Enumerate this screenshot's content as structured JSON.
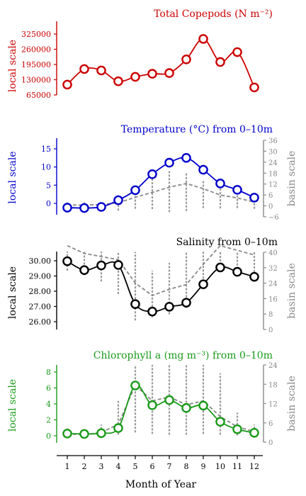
{
  "chart_data": [
    {
      "type": "line",
      "title": "Total Copepods (N m⁻²)",
      "title_color": "#cc0000",
      "ylabel": "local scale",
      "y_ticks": [
        "325000",
        "260000",
        "195000",
        "130000",
        "65000"
      ],
      "ylim": [
        42000,
        355000
      ],
      "x": [
        1,
        2,
        3,
        4,
        5,
        6,
        7,
        8,
        9,
        10,
        11,
        12
      ],
      "series": [
        {
          "values": [
            86000,
            152000,
            146000,
            100000,
            119000,
            132000,
            135000,
            193000,
            280000,
            182000,
            224000,
            74000
          ],
          "color": "#cc0000"
        }
      ]
    },
    {
      "type": "line",
      "title": "Temperature (°C) from 0–10m",
      "title_color": "#0000cc",
      "ylabel": "local scale",
      "ylabel_right": "basin scale",
      "y_ticks": [
        "15",
        "10",
        "5",
        "0"
      ],
      "y2_ticks": [
        "36",
        "30",
        "24",
        "18",
        "12",
        "6",
        "0",
        "−6"
      ],
      "ylim": [
        -3.1,
        17.5
      ],
      "ylim_right": [
        -6,
        36
      ],
      "x": [
        1,
        2,
        3,
        4,
        5,
        6,
        7,
        8,
        9,
        10,
        11,
        12
      ],
      "series": [
        {
          "values": [
            -1.2,
            -1.3,
            -1.0,
            0.8,
            3.5,
            7.8,
            10.9,
            12.2,
            9.0,
            5.3,
            3.6,
            1.5
          ],
          "color": "#0000cc"
        },
        {
          "values": [
            -0.5,
            -0.5,
            -0.4,
            0.1,
            1.6,
            2.9,
            4.3,
            5.3,
            3.9,
            2.2,
            1.4,
            0.3
          ],
          "color": "#888888",
          "dashed": true
        },
        {
          "type": "error_bar",
          "low": [
            -1.3,
            -1.3,
            -1.4,
            -2.0,
            -1.5,
            -1.6,
            -2.4,
            -2.1,
            -1.3,
            -1.4,
            -1.3,
            -1.5
          ],
          "high": [
            0.3,
            0.3,
            0.5,
            1.9,
            3.7,
            6.6,
            8.9,
            8.1,
            6.3,
            4.3,
            2.5,
            1.6
          ],
          "color": "#999999"
        }
      ]
    },
    {
      "type": "line",
      "title": "Salinity from 0–10m",
      "title_color": "#000000",
      "ylabel": "local scale",
      "ylabel_right": "basin scale",
      "y_ticks": [
        "30.00",
        "29.00",
        "28.00",
        "27.00",
        "26.00"
      ],
      "y2_ticks": [
        "40",
        "32",
        "24",
        "16",
        "8",
        "0"
      ],
      "ylim": [
        25.62,
        30.62
      ],
      "ylim_right": [
        0,
        40
      ],
      "x": [
        1,
        2,
        3,
        4,
        5,
        6,
        7,
        8,
        9,
        10,
        11,
        12
      ],
      "series": [
        {
          "values": [
            30.0,
            29.43,
            29.73,
            29.76,
            27.25,
            26.77,
            27.08,
            27.34,
            28.52,
            29.6,
            29.32,
            29.0
          ],
          "color": "#000000"
        },
        {
          "values": [
            31.0,
            30.5,
            30.3,
            30.1,
            28.6,
            27.8,
            28.2,
            28.5,
            29.8,
            31.0,
            30.7,
            30.4
          ],
          "color": "#888888",
          "dashed": true
        },
        {
          "type": "error_bar",
          "low": [
            29.4,
            29.1,
            28.7,
            27.9,
            26.2,
            26.4,
            26.6,
            27.0,
            28.2,
            29.3,
            29.5,
            29.3
          ],
          "high": [
            32.8,
            32.4,
            31.9,
            31.7,
            30.6,
            29.4,
            29.9,
            30.6,
            31.2,
            32.9,
            32.6,
            31.9
          ],
          "color": "#999999"
        }
      ]
    },
    {
      "type": "line",
      "title": "Chlorophyll a (mg m⁻³) from 0–10m",
      "title_color": "#1a9a1a",
      "ylabel": "local scale",
      "ylabel_right": "basin scale",
      "y_ticks": [
        "8",
        "6",
        "4",
        "2",
        "0"
      ],
      "y2_ticks": [
        "24",
        "18",
        "12",
        "6",
        "0"
      ],
      "ylim": [
        -0.83,
        9.06
      ],
      "ylim_right": [
        -0.3,
        24
      ],
      "x": [
        1,
        2,
        3,
        4,
        5,
        6,
        7,
        8,
        9,
        10,
        11,
        12
      ],
      "series": [
        {
          "values": [
            0.35,
            0.3,
            0.4,
            1.05,
            6.45,
            3.95,
            4.6,
            3.6,
            3.9,
            1.85,
            0.9,
            0.45
          ],
          "color": "#1a9a1a"
        },
        {
          "values": [
            0.3,
            0.2,
            0.5,
            1.5,
            6.5,
            4.5,
            5.0,
            4.0,
            4.5,
            2.5,
            1.2,
            0.6
          ],
          "color": "#888888",
          "dashed": true
        },
        {
          "type": "error_bar",
          "low": [
            0,
            0,
            0,
            0.2,
            0.5,
            0.3,
            0.2,
            0.2,
            0.3,
            0.2,
            0.1,
            0.05
          ],
          "high": [
            1.0,
            0.8,
            1.5,
            4.5,
            12.0,
            23.0,
            12.0,
            10.0,
            12.0,
            8.0,
            3.0,
            1.5
          ],
          "color": "#999999"
        }
      ]
    }
  ],
  "xaxis": {
    "label": "Month of Year",
    "tick_labels": [
      "1",
      "2",
      "3",
      "4",
      "5",
      "6",
      "7",
      "8",
      "9",
      "10",
      "11",
      "12"
    ]
  }
}
